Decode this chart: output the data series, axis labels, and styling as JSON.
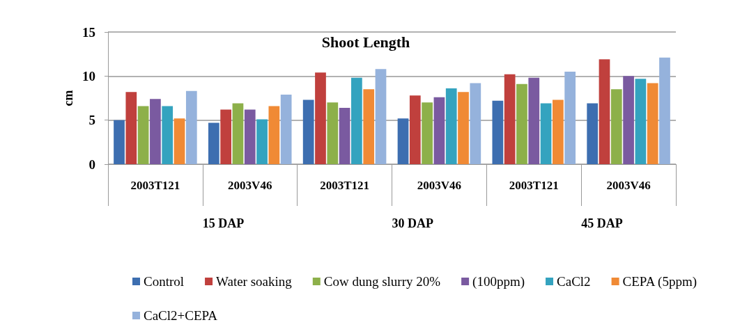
{
  "chart_data": {
    "type": "bar",
    "title": "Shoot Length",
    "ylabel": "cm",
    "categories": [
      "2003T121",
      "2003V46",
      "2003T121",
      "2003V46",
      "2003T121",
      "2003V46"
    ],
    "annotations": [
      "15 DAP",
      "30 DAP",
      "45 DAP"
    ],
    "series": [
      {
        "name": "Control",
        "color": "#3d6eb0",
        "values": [
          5.0,
          4.7,
          7.3,
          5.2,
          7.2,
          6.9
        ]
      },
      {
        "name": "Water soaking",
        "color": "#c0403d",
        "values": [
          8.2,
          6.2,
          10.4,
          7.8,
          10.2,
          11.9
        ]
      },
      {
        "name": "Cow dung slurry 20%",
        "color": "#8db04a",
        "values": [
          6.6,
          6.9,
          7.0,
          7.0,
          9.1,
          8.5
        ]
      },
      {
        "name": "(100ppm)",
        "color": "#7a5aa0",
        "values": [
          7.4,
          6.2,
          6.4,
          7.6,
          9.8,
          10.0
        ]
      },
      {
        "name": "CaCl2",
        "color": "#34a3bf",
        "values": [
          6.6,
          5.1,
          9.8,
          8.6,
          6.9,
          9.7
        ]
      },
      {
        "name": "CEPA (5ppm)",
        "color": "#f08a35",
        "values": [
          5.2,
          6.6,
          8.5,
          8.2,
          7.3,
          9.2
        ]
      },
      {
        "name": "CaCl2+CEPA",
        "color": "#95b2dc",
        "values": [
          8.3,
          7.9,
          10.8,
          9.2,
          10.5,
          12.1
        ]
      }
    ],
    "ylim": [
      0,
      15
    ],
    "yticks": [
      0,
      5,
      10,
      15
    ],
    "grid": "y",
    "legend": "bottom"
  }
}
